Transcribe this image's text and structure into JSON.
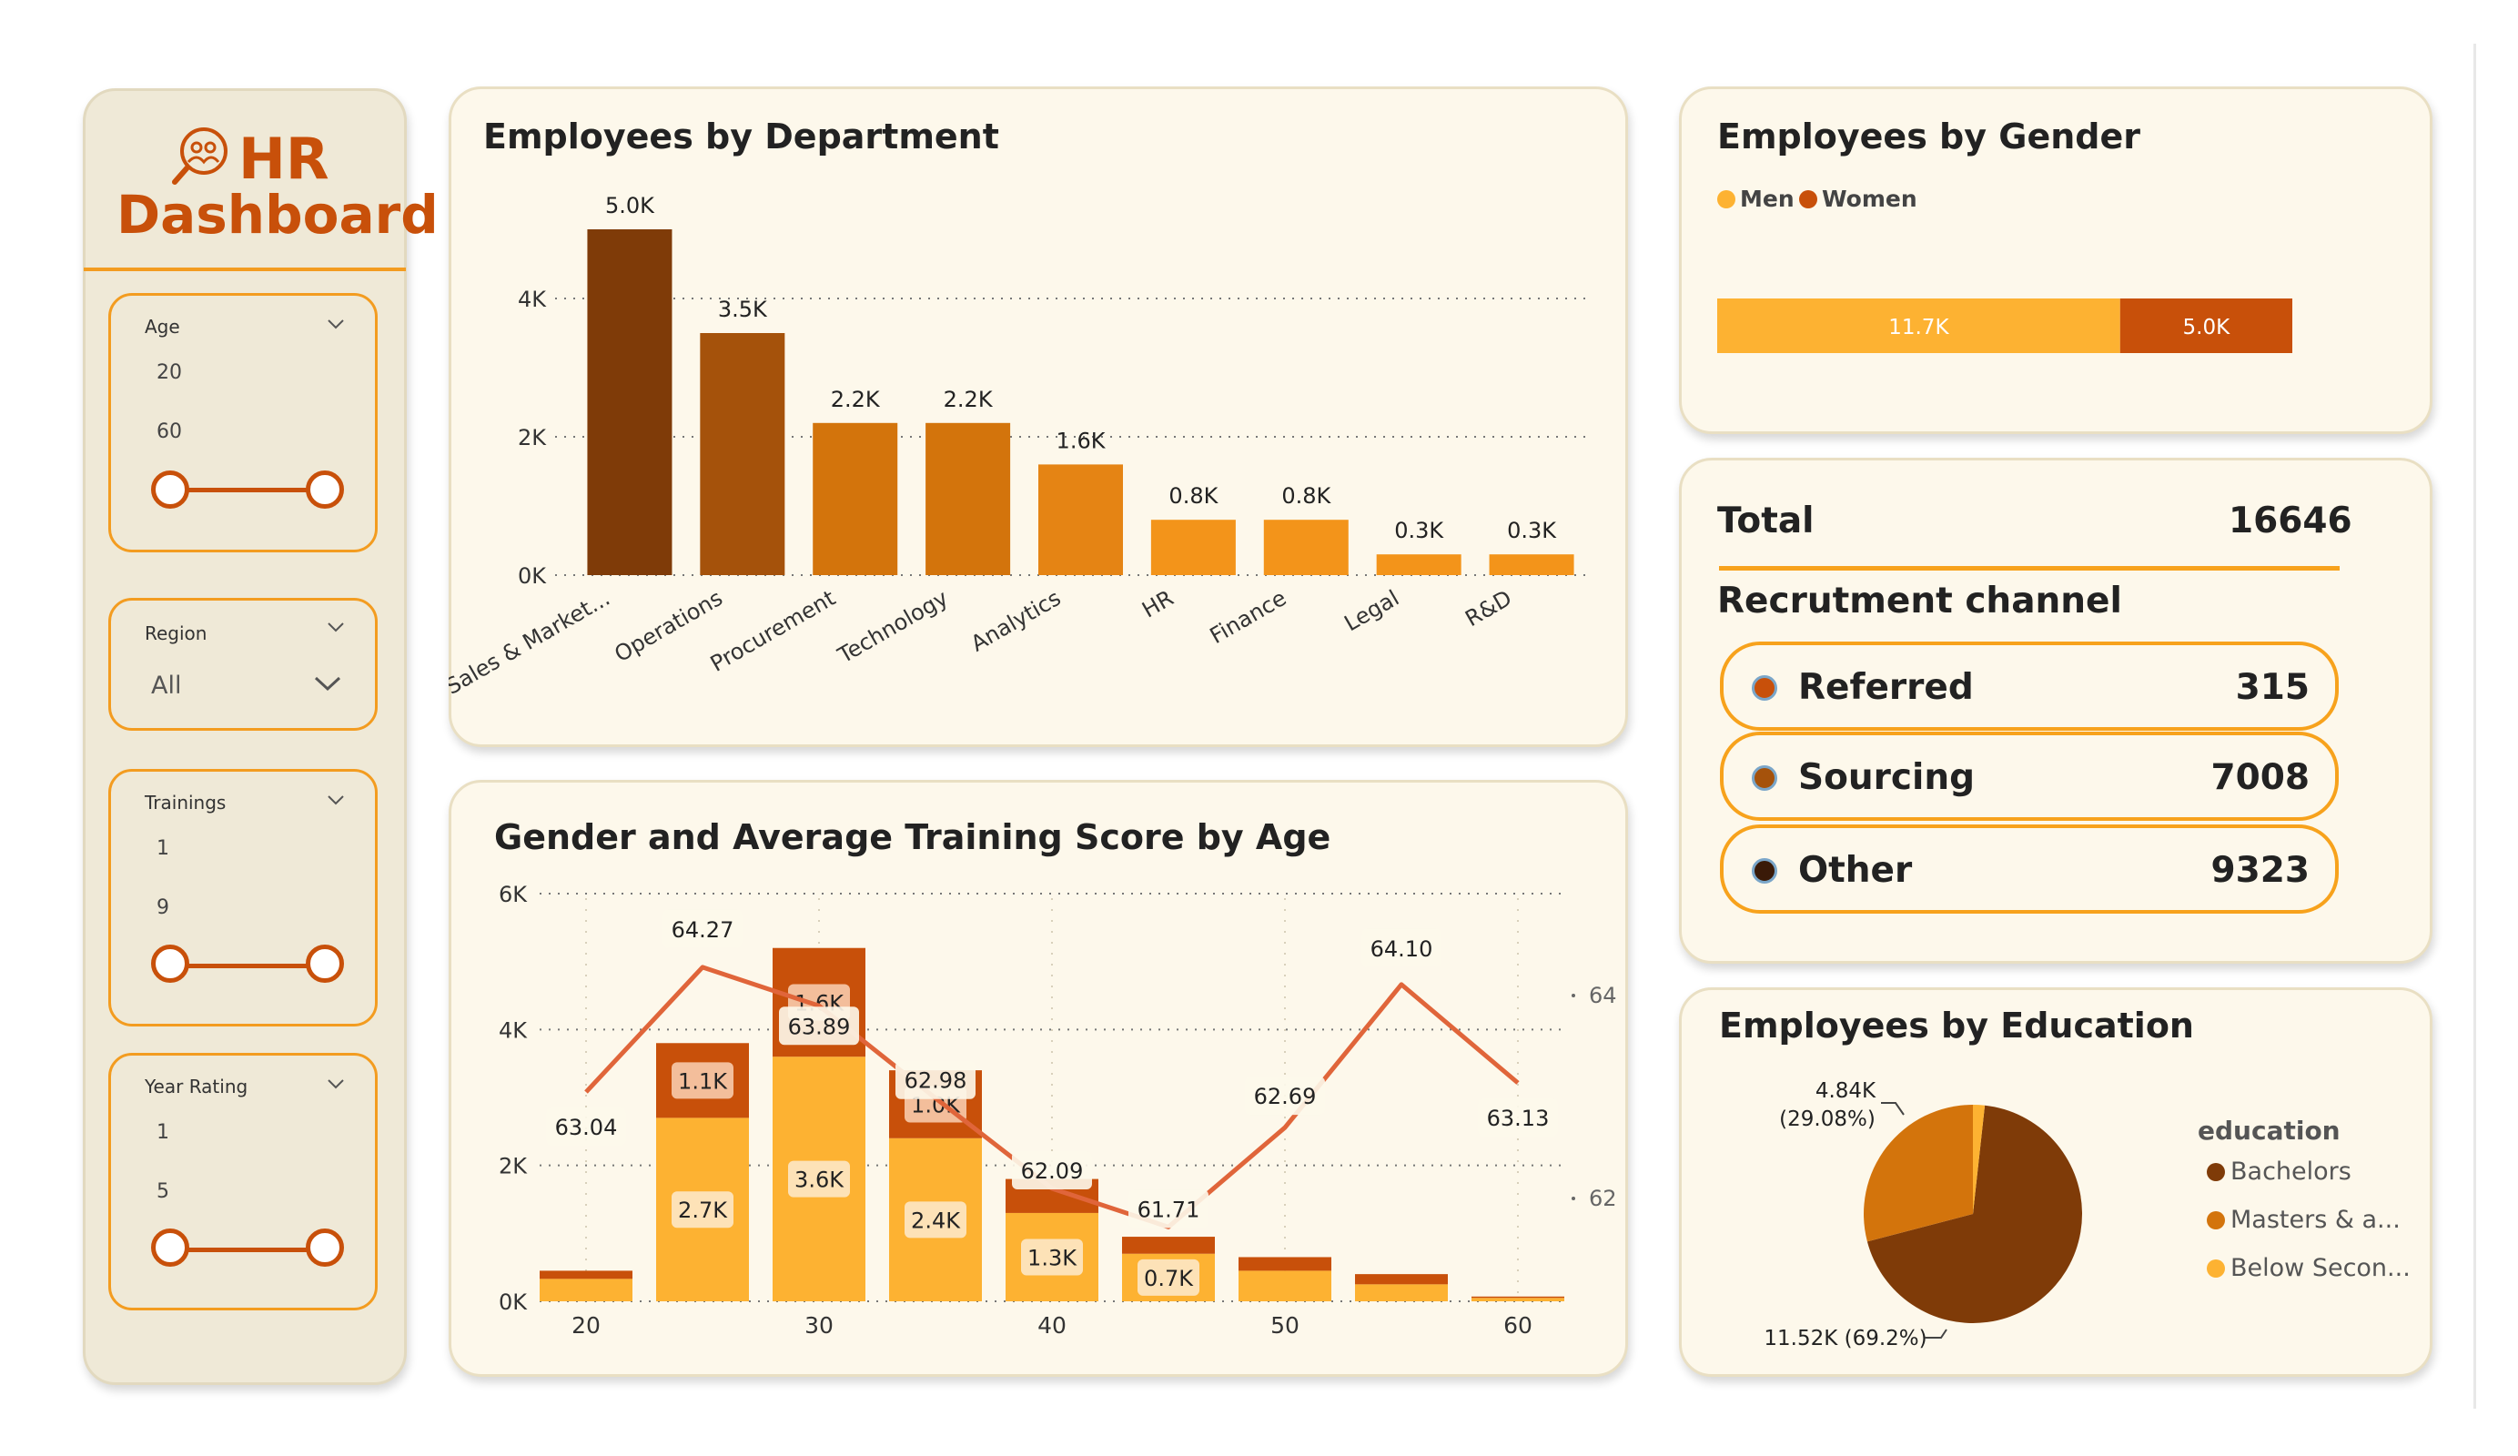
{
  "sidebar": {
    "title_line1": "HR",
    "title_line2": "Dashboard",
    "logo_icon": "people-search-icon",
    "slicers": [
      {
        "label": "Age",
        "min": "20",
        "max": "60"
      },
      {
        "label": "Region",
        "value": "All"
      },
      {
        "label": "Trainings",
        "min": "1",
        "max": "9"
      },
      {
        "label": "Year Rating",
        "min": "1",
        "max": "5"
      }
    ]
  },
  "colors": {
    "dark_brown": "#7f3b08",
    "brown": "#a5520b",
    "orange_dark": "#c8500a",
    "orange": "#d3740c",
    "orange_mid": "#e58414",
    "orange_light": "#f3941a",
    "amber": "#fdb232",
    "line": "#e0653a"
  },
  "dept_chart": {
    "title": "Employees by Department",
    "chart_data": {
      "type": "bar",
      "categories": [
        "Sales & Market...",
        "Operations",
        "Procurement",
        "Technology",
        "Analytics",
        "HR",
        "Finance",
        "Legal",
        "R&D"
      ],
      "values": [
        5.0,
        3.5,
        2.2,
        2.2,
        1.6,
        0.8,
        0.8,
        0.3,
        0.3
      ],
      "data_labels": [
        "5.0K",
        "3.5K",
        "2.2K",
        "2.2K",
        "1.6K",
        "0.8K",
        "0.8K",
        "0.3K",
        "0.3K"
      ],
      "yticks": [
        "0K",
        "2K",
        "4K"
      ],
      "ylim": [
        0,
        5.0
      ],
      "grid": true
    }
  },
  "gender_chart": {
    "title": "Employees by Gender",
    "legend": [
      {
        "name": "Men",
        "color": "#fdb232"
      },
      {
        "name": "Women",
        "color": "#c8500a"
      }
    ],
    "chart_data": {
      "type": "bar",
      "orientation": "horizontal-stacked",
      "series": [
        {
          "name": "Men",
          "values": [
            11.7
          ],
          "label": "11.7K"
        },
        {
          "name": "Women",
          "values": [
            5.0
          ],
          "label": "5.0K"
        }
      ]
    }
  },
  "recruitment": {
    "total_label": "Total",
    "total_value": "16646",
    "heading": "Recrutment channel",
    "channels": [
      {
        "label": "Referred",
        "value": "315",
        "color": "#c8500a"
      },
      {
        "label": "Sourcing",
        "value": "7008",
        "color": "#a5520b"
      },
      {
        "label": "Other",
        "value": "9323",
        "color": "#3a1a08"
      }
    ]
  },
  "education_chart": {
    "title": "Employees by Education",
    "legend_title": "education",
    "legend": [
      {
        "name": "Bachelors",
        "color": "#7f3b08"
      },
      {
        "name": "Masters & a...",
        "color": "#d3740c"
      },
      {
        "name": "Below Secon...",
        "color": "#fdb232"
      }
    ],
    "chart_data": {
      "type": "pie",
      "slices": [
        {
          "name": "Bachelors",
          "value": 11.52,
          "percent": 69.2,
          "label": "11.52K (69.2%)"
        },
        {
          "name": "Masters & a...",
          "value": 4.84,
          "percent": 29.08,
          "label_line1": "4.84K",
          "label_line2": "(29.08%)"
        },
        {
          "name": "Below Secon...",
          "value": 0.29,
          "percent": 1.72
        }
      ]
    }
  },
  "age_chart": {
    "title": "Gender and Average Training Score by Age",
    "chart_data": {
      "type": "bar",
      "stacked": true,
      "x": [
        20,
        25,
        30,
        35,
        40,
        45,
        50,
        55,
        60
      ],
      "xticks": [
        "20",
        "30",
        "40",
        "50",
        "60"
      ],
      "yticks_left": [
        "0K",
        "2K",
        "4K",
        "6K"
      ],
      "yticks_right": [
        "62",
        "64"
      ],
      "ylim_left": [
        0,
        6.0
      ],
      "ylim_right": [
        60.8,
        64.8
      ],
      "series": [
        {
          "name": "Men",
          "values": [
            0.33,
            2.7,
            3.6,
            2.4,
            1.3,
            0.7,
            0.45,
            0.25,
            0.05
          ],
          "labels": [
            "",
            "2.7K",
            "3.6K",
            "2.4K",
            "1.3K",
            "0.7K",
            "",
            "",
            ""
          ]
        },
        {
          "name": "Women",
          "values": [
            0.12,
            1.1,
            1.6,
            1.0,
            0.5,
            0.25,
            0.2,
            0.15,
            0.02
          ],
          "labels": [
            "",
            "1.1K",
            "1.6K",
            "1.0K",
            "",
            "",
            "",
            "",
            ""
          ]
        },
        {
          "name": "Average Training Score",
          "type": "line",
          "values": [
            63.04,
            64.27,
            63.89,
            62.98,
            62.09,
            61.71,
            62.69,
            64.1,
            63.13
          ],
          "labels": [
            "63.04",
            "64.27",
            "63.89",
            "62.98",
            "62.09",
            "61.71",
            "62.69",
            "64.10",
            "63.13"
          ]
        }
      ]
    }
  }
}
